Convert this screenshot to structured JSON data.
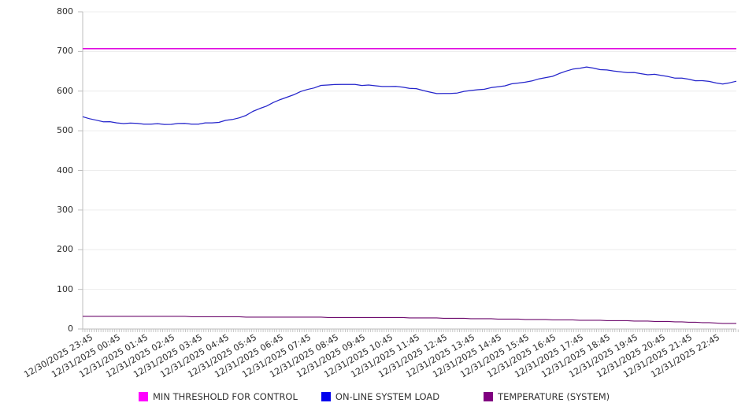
{
  "chart_data": {
    "type": "line",
    "title": "",
    "xlabel": "",
    "ylabel": "",
    "ylim": [
      0,
      800
    ],
    "yticks": [
      0,
      100,
      200,
      300,
      400,
      500,
      600,
      700,
      800
    ],
    "grid": "horizontal",
    "legend_position": "bottom",
    "x_tick_labels": [
      "12/30/2025 23:45",
      "12/31/2025 00:45",
      "12/31/2025 01:45",
      "12/31/2025 02:45",
      "12/31/2025 03:45",
      "12/31/2025 04:45",
      "12/31/2025 05:45",
      "12/31/2025 06:45",
      "12/31/2025 07:45",
      "12/31/2025 08:45",
      "12/31/2025 09:45",
      "12/31/2025 10:45",
      "12/31/2025 11:45",
      "12/31/2025 12:45",
      "12/31/2025 13:45",
      "12/31/2025 14:45",
      "12/31/2025 15:45",
      "12/31/2025 16:45",
      "12/31/2025 17:45",
      "12/31/2025 18:45",
      "12/31/2025 19:45",
      "12/31/2025 20:45",
      "12/31/2025 21:45",
      "12/31/2025 22:45"
    ],
    "x_start": "12/30/2025 23:45",
    "x_interval_minutes": 15,
    "series": [
      {
        "name": "MIN THRESHOLD FOR CONTROL",
        "key": "threshold",
        "color": "#E10CE1",
        "swatch": "#FF00FF",
        "style": "constant",
        "value": 707
      },
      {
        "name": "ON-LINE SYSTEM LOAD",
        "key": "load",
        "color": "#2424CB",
        "swatch": "#0000EE",
        "style": "line",
        "values": [
          534,
          530,
          527,
          524,
          522,
          520,
          519,
          518,
          518,
          517,
          518,
          517,
          516,
          517,
          517,
          518,
          517,
          518,
          519,
          520,
          522,
          525,
          528,
          533,
          540,
          548,
          556,
          563,
          570,
          578,
          585,
          592,
          598,
          604,
          609,
          613,
          615,
          617,
          618,
          616,
          617,
          615,
          614,
          613,
          612,
          613,
          611,
          610,
          608,
          605,
          601,
          598,
          595,
          593,
          594,
          596,
          598,
          601,
          604,
          606,
          608,
          611,
          614,
          617,
          620,
          623,
          627,
          630,
          634,
          638,
          643,
          650,
          656,
          659,
          660,
          658,
          655,
          652,
          650,
          649,
          648,
          646,
          644,
          642,
          641,
          639,
          637,
          634,
          632,
          630,
          627,
          625,
          624,
          621,
          619,
          620,
          625
        ]
      },
      {
        "name": "TEMPERATURE (SYSTEM)",
        "key": "temperature",
        "color": "#6E0B6E",
        "swatch": "#800080",
        "style": "line",
        "values": [
          32,
          32,
          32,
          32,
          32,
          32,
          32,
          32,
          32,
          32,
          32,
          32,
          32,
          32,
          32,
          32,
          31,
          31,
          31,
          31,
          31,
          31,
          31,
          31,
          30,
          30,
          30,
          30,
          30,
          30,
          30,
          30,
          30,
          30,
          30,
          30,
          29,
          29,
          29,
          29,
          29,
          29,
          29,
          29,
          29,
          29,
          29,
          29,
          28,
          28,
          28,
          28,
          28,
          27,
          27,
          27,
          27,
          26,
          26,
          26,
          26,
          25,
          25,
          25,
          25,
          24,
          24,
          24,
          24,
          23,
          23,
          23,
          23,
          22,
          22,
          22,
          22,
          21,
          21,
          21,
          21,
          20,
          20,
          20,
          19,
          19,
          19,
          18,
          18,
          17,
          17,
          16,
          16,
          15,
          14,
          14,
          14
        ]
      }
    ]
  }
}
